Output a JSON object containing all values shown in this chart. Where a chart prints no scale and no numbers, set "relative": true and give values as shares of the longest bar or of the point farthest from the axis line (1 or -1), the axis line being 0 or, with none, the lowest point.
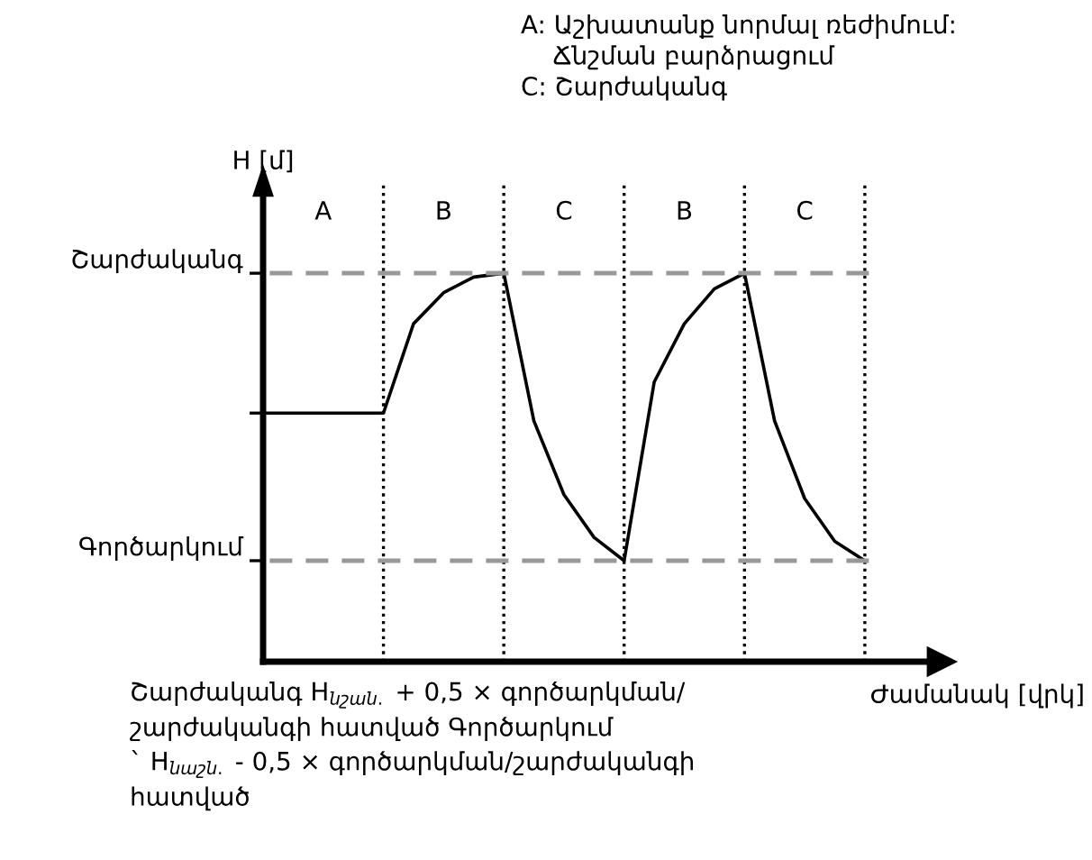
{
  "chart_data": {
    "type": "line",
    "relative": true,
    "ylabel": "H [մ]",
    "xlabel": "Ժամանակ [վրկ]",
    "categories": [
      null,
      null,
      null,
      null,
      null,
      null,
      null,
      null,
      null,
      null,
      null,
      null,
      null,
      null,
      null,
      null,
      null,
      null,
      null,
      null,
      null
    ],
    "series": [
      {
        "color": "#000000",
        "values": [
          0.64,
          0.64,
          0.64,
          0.64,
          0.64,
          0.87,
          0.95,
          0.99,
          1,
          0.62,
          0.43,
          0.32,
          0.26,
          0.72,
          0.87,
          0.96,
          1,
          0.62,
          0.42,
          0.31,
          0.26
        ]
      }
    ],
    "ref_lines": [
      {
        "axis": "y",
        "value": 1,
        "label": "Շարժականգ",
        "color": "#999999",
        "line_style": "dashed"
      },
      {
        "axis": "y",
        "value": 0.26,
        "label": "Գործարկում",
        "color": "#999999",
        "line_style": "dashed"
      }
    ],
    "annotations": [
      "A",
      "B",
      "C",
      "B",
      "C",
      "A: Աշխատանք նորմալ ռեժիմում:\n    Ճնշման բարձրացում\nC: Շարժականգ",
      "Շարժականգ H$_{նշան.}$ + 0,5 × գործարկման/\nշարժականգի հատված Գործարկում\n` H$_{նաշն.}$ - 0,5 × գործարկման/շարժականգի\nհատված"
    ],
    "grid": "x",
    "marker": "none",
    "line_style": "solid"
  }
}
